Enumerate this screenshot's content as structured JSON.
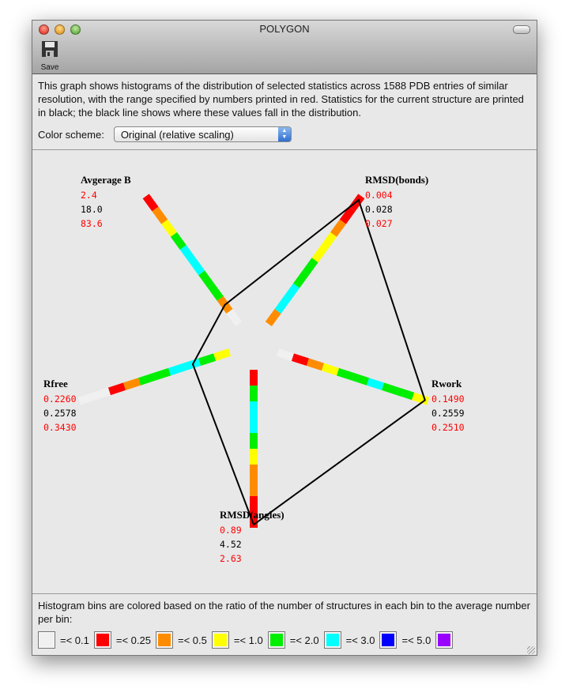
{
  "window": {
    "title": "POLYGON"
  },
  "toolbar": {
    "save_label": "Save",
    "save_icon": "floppy-disk-icon"
  },
  "description": "This graph shows histograms of the distribution of selected statistics across 1588 PDB entries of similar resolution, with the range specified by numbers printed in red.  Statistics for the current structure are printed in black; the black line shows where these values fall in the distribution.",
  "color_scheme": {
    "label": "Color scheme:",
    "selected": "Original (relative scaling)"
  },
  "colors": {
    "white": "#f0f0f0",
    "red": "#ff0000",
    "orange": "#ff8c00",
    "yellow": "#ffff00",
    "green": "#00ee00",
    "cyan": "#00ffff",
    "blue": "#0000ff",
    "purple": "#9900ff",
    "line": "#000000"
  },
  "chart_data": {
    "type": "radar-histogram",
    "axes": [
      {
        "name": "Avgerage B",
        "min": "2.4",
        "current": "18.0",
        "max": "83.6",
        "position_fraction": 0.15,
        "bins": [
          "white",
          "orange",
          "green",
          "green",
          "cyan",
          "cyan",
          "green",
          "yellow",
          "orange",
          "red"
        ]
      },
      {
        "name": "RMSD(bonds)",
        "min": "0.004",
        "current": "0.028",
        "max": "0.027",
        "position_fraction": 0.97,
        "bins": [
          "orange",
          "cyan",
          "cyan",
          "green",
          "green",
          "yellow",
          "yellow",
          "orange",
          "red",
          "red"
        ]
      },
      {
        "name": "Rwork",
        "min": "0.1490",
        "current": "0.2559",
        "max": "0.2510",
        "position_fraction": 0.98,
        "bins": [
          "white",
          "red",
          "orange",
          "yellow",
          "green",
          "green",
          "cyan",
          "green",
          "green",
          "yellow"
        ]
      },
      {
        "name": "RMSD(angles)",
        "min": "0.89",
        "current": "4.52",
        "max": "2.63",
        "position_fraction": 0.98,
        "bins": [
          "red",
          "green",
          "cyan",
          "cyan",
          "green",
          "yellow",
          "orange",
          "orange",
          "red",
          "red"
        ]
      },
      {
        "name": "Rfree",
        "min": "0.2260",
        "current": "0.2578",
        "max": "0.3430",
        "position_fraction": 0.245,
        "bins": [
          "yellow",
          "green",
          "cyan",
          "cyan",
          "green",
          "green",
          "orange",
          "red",
          "white",
          "white"
        ]
      }
    ]
  },
  "legend": {
    "text": "Histogram bins are colored based on the ratio of the number of structures in each bin to the average number per bin:",
    "items": [
      {
        "color": "white",
        "label": "=< 0.1"
      },
      {
        "color": "red",
        "label": "=< 0.25"
      },
      {
        "color": "orange",
        "label": "=< 0.5"
      },
      {
        "color": "yellow",
        "label": "=< 1.0"
      },
      {
        "color": "green",
        "label": "=< 2.0"
      },
      {
        "color": "cyan",
        "label": "=< 3.0"
      },
      {
        "color": "blue",
        "label": "=< 5.0"
      },
      {
        "color": "purple",
        "label": ""
      }
    ]
  }
}
